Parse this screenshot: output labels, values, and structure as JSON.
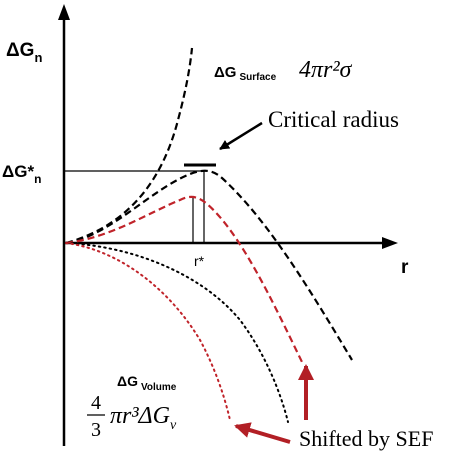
{
  "axes": {
    "y_label": "ΔG",
    "y_label_sub": "n",
    "x_label": "r",
    "critical_value_label": "ΔG*",
    "critical_value_sub": "n",
    "critical_radius_tick": "r*"
  },
  "curves": {
    "surface": {
      "label": "ΔG",
      "label_sub": "Surface",
      "formula": "4πr²σ"
    },
    "volume": {
      "label": "ΔG",
      "label_sub": "Volume",
      "formula_coef_num": "4",
      "formula_coef_den": "3",
      "formula_rest": "πr³ΔG",
      "formula_rest_sub": "v"
    }
  },
  "annotations": {
    "critical_radius": "Critical radius",
    "shifted": "Shifted by SEF"
  },
  "colors": {
    "axis": "#000000",
    "curve_black": "#000000",
    "curve_red": "#c0232a",
    "arrow_red": "#b21f25"
  }
}
